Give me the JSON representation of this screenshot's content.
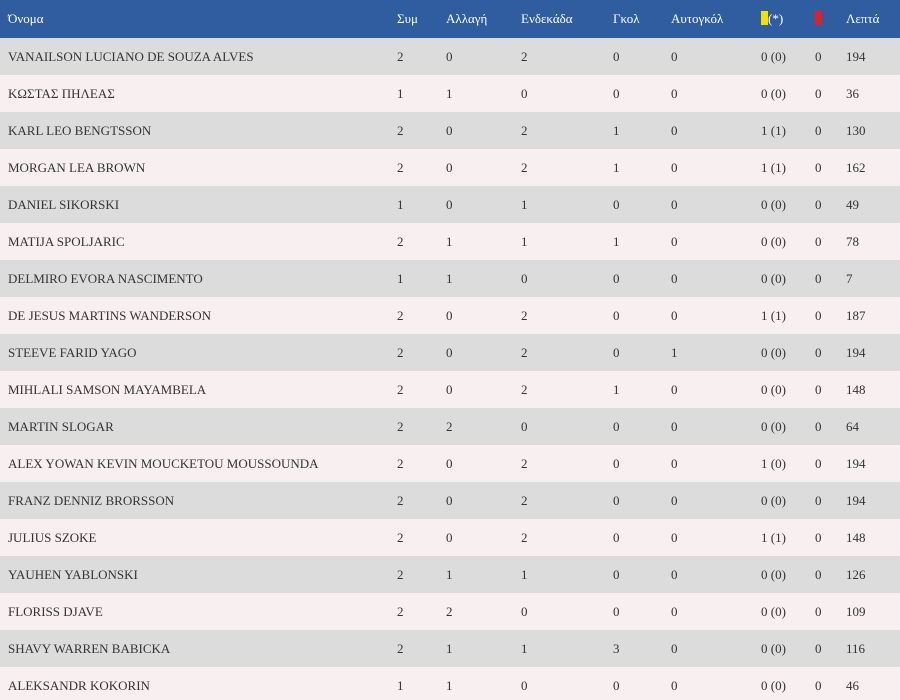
{
  "colors": {
    "header_bg": "#2f5d9f",
    "row_odd": "#dcdcdc",
    "row_even": "#f7eff0",
    "yellow_card": "#f5e000",
    "red_card": "#e0202a"
  },
  "header": {
    "name": "Όνομα",
    "appearances": "Συμ",
    "substitutions": "Αλλαγή",
    "starting": "Ενδεκάδα",
    "goals": "Γκολ",
    "own_goals": "Αυτογκόλ",
    "yellow_suffix": "(*)",
    "yellow_icon": "yellow-card-icon",
    "red_icon": "red-card-icon",
    "minutes": "Λεπτά"
  },
  "rows": [
    {
      "name": "VANAILSON LUCIANO DE SOUZA ALVES",
      "apps": "2",
      "subs": "0",
      "start": "2",
      "goals": "0",
      "own": "0",
      "yellow": "0 (0)",
      "red": "0",
      "minutes": "194"
    },
    {
      "name": "ΚΩΣΤΑΣ ΠΗΛΕΑΣ",
      "apps": "1",
      "subs": "1",
      "start": "0",
      "goals": "0",
      "own": "0",
      "yellow": "0 (0)",
      "red": "0",
      "minutes": "36"
    },
    {
      "name": "KARL LEO BENGTSSON",
      "apps": "2",
      "subs": "0",
      "start": "2",
      "goals": "1",
      "own": "0",
      "yellow": "1 (1)",
      "red": "0",
      "minutes": "130"
    },
    {
      "name": "MORGAN LEA BROWN",
      "apps": "2",
      "subs": "0",
      "start": "2",
      "goals": "1",
      "own": "0",
      "yellow": "1 (1)",
      "red": "0",
      "minutes": "162"
    },
    {
      "name": "DANIEL SIKORSKI",
      "apps": "1",
      "subs": "0",
      "start": "1",
      "goals": "0",
      "own": "0",
      "yellow": "0 (0)",
      "red": "0",
      "minutes": "49"
    },
    {
      "name": "MATIJA SPOLJARIC",
      "apps": "2",
      "subs": "1",
      "start": "1",
      "goals": "1",
      "own": "0",
      "yellow": "0 (0)",
      "red": "0",
      "minutes": "78"
    },
    {
      "name": "DELMIRO EVORA NASCIMENTO",
      "apps": "1",
      "subs": "1",
      "start": "0",
      "goals": "0",
      "own": "0",
      "yellow": "0 (0)",
      "red": "0",
      "minutes": "7"
    },
    {
      "name": "DE JESUS MARTINS WANDERSON",
      "apps": "2",
      "subs": "0",
      "start": "2",
      "goals": "0",
      "own": "0",
      "yellow": "1 (1)",
      "red": "0",
      "minutes": "187"
    },
    {
      "name": "STEEVE FARID YAGO",
      "apps": "2",
      "subs": "0",
      "start": "2",
      "goals": "0",
      "own": "1",
      "yellow": "0 (0)",
      "red": "0",
      "minutes": "194"
    },
    {
      "name": "MIHLALI SAMSON MAYAMBELA",
      "apps": "2",
      "subs": "0",
      "start": "2",
      "goals": "1",
      "own": "0",
      "yellow": "0 (0)",
      "red": "0",
      "minutes": "148"
    },
    {
      "name": "MARTIN SLOGAR",
      "apps": "2",
      "subs": "2",
      "start": "0",
      "goals": "0",
      "own": "0",
      "yellow": "0 (0)",
      "red": "0",
      "minutes": "64"
    },
    {
      "name": "ALEX YOWAN KEVIN MOUCKETOU MOUSSOUNDA",
      "apps": "2",
      "subs": "0",
      "start": "2",
      "goals": "0",
      "own": "0",
      "yellow": "1 (0)",
      "red": "0",
      "minutes": "194"
    },
    {
      "name": "FRANZ DENNIZ BRORSSON",
      "apps": "2",
      "subs": "0",
      "start": "2",
      "goals": "0",
      "own": "0",
      "yellow": "0 (0)",
      "red": "0",
      "minutes": "194"
    },
    {
      "name": "JULIUS SZOKE",
      "apps": "2",
      "subs": "0",
      "start": "2",
      "goals": "0",
      "own": "0",
      "yellow": "1 (1)",
      "red": "0",
      "minutes": "148"
    },
    {
      "name": "YAUHEN YABLONSKI",
      "apps": "2",
      "subs": "1",
      "start": "1",
      "goals": "0",
      "own": "0",
      "yellow": "0 (0)",
      "red": "0",
      "minutes": "126"
    },
    {
      "name": "FLORISS DJAVE",
      "apps": "2",
      "subs": "2",
      "start": "0",
      "goals": "0",
      "own": "0",
      "yellow": "0 (0)",
      "red": "0",
      "minutes": "109"
    },
    {
      "name": "SHAVY WARREN BABICKA",
      "apps": "2",
      "subs": "1",
      "start": "1",
      "goals": "3",
      "own": "0",
      "yellow": "0 (0)",
      "red": "0",
      "minutes": "116"
    },
    {
      "name": "ALEKSANDR KOKORIN",
      "apps": "1",
      "subs": "1",
      "start": "0",
      "goals": "0",
      "own": "0",
      "yellow": "0 (0)",
      "red": "0",
      "minutes": "46"
    }
  ]
}
